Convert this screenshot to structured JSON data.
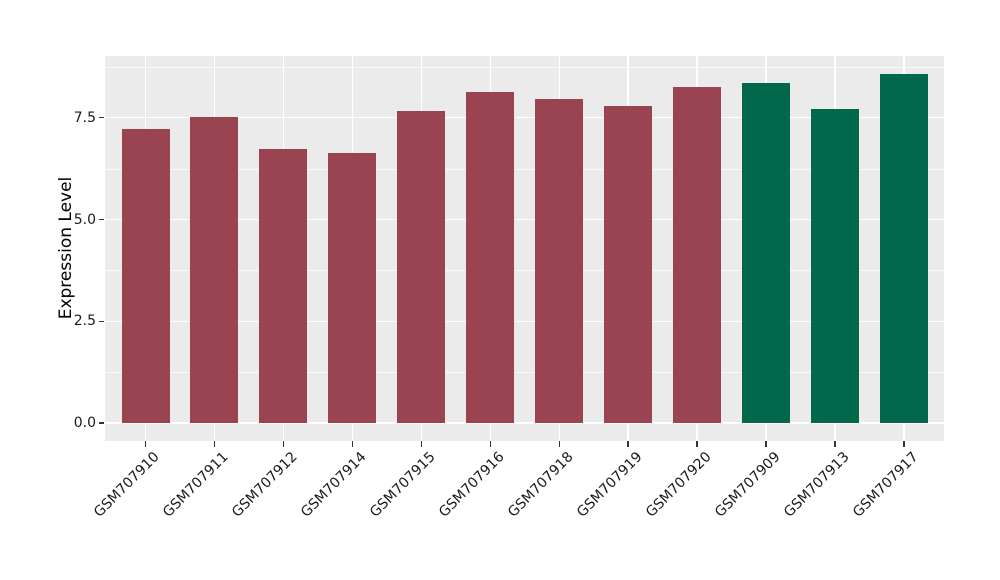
{
  "chart_data": {
    "type": "bar",
    "title": "",
    "xlabel": "",
    "ylabel": "Expression Level",
    "categories": [
      "GSM707910",
      "GSM707911",
      "GSM707912",
      "GSM707914",
      "GSM707915",
      "GSM707916",
      "GSM707918",
      "GSM707919",
      "GSM707920",
      "GSM707909",
      "GSM707913",
      "GSM707917"
    ],
    "values": [
      7.21,
      7.51,
      6.72,
      6.63,
      7.66,
      8.12,
      7.95,
      7.78,
      8.25,
      8.36,
      7.71,
      8.58
    ],
    "bar_colors": [
      "#9A4452",
      "#9A4452",
      "#9A4452",
      "#9A4452",
      "#9A4452",
      "#9A4452",
      "#9A4452",
      "#9A4452",
      "#9A4452",
      "#02684B",
      "#02684B",
      "#02684B"
    ],
    "y_ticks": [
      0.0,
      2.5,
      5.0,
      7.5
    ],
    "y_tick_labels": [
      "0.0",
      "2.5",
      "5.0",
      "7.5"
    ],
    "y_minor_ticks": [
      1.25,
      3.75,
      6.25,
      8.75
    ],
    "ylim": [
      -0.45,
      9.01
    ],
    "grid": "on",
    "legend": "none",
    "panel_background": "#EBEBEB",
    "grid_color": "#FFFFFF"
  }
}
